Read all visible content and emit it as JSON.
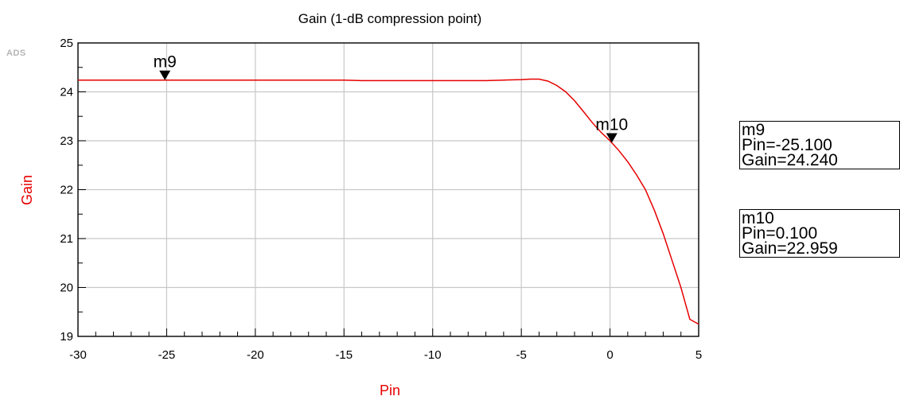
{
  "logo": "ADS",
  "chart_data": {
    "type": "line",
    "title": "Gain (1-dB compression point)",
    "xlabel": "Pin",
    "ylabel": "Gain",
    "xlim": [
      -30,
      5
    ],
    "ylim": [
      19,
      25
    ],
    "xticks": [
      "-30",
      "-25",
      "-20",
      "-15",
      "-10",
      "-5",
      "0",
      "5"
    ],
    "yticks": [
      "19",
      "20",
      "21",
      "22",
      "23",
      "24",
      "25"
    ],
    "grid": true,
    "series_color": "#e60000",
    "series": [
      {
        "values": [
          [
            -30,
            24.24
          ],
          [
            -25,
            24.24
          ],
          [
            -20,
            24.24
          ],
          [
            -15,
            24.24
          ],
          [
            -14,
            24.23
          ],
          [
            -12,
            24.23
          ],
          [
            -10,
            24.23
          ],
          [
            -8,
            24.23
          ],
          [
            -7,
            24.23
          ],
          [
            -6,
            24.24
          ],
          [
            -5,
            24.25
          ],
          [
            -4.5,
            24.26
          ],
          [
            -4,
            24.26
          ],
          [
            -3.5,
            24.22
          ],
          [
            -3,
            24.13
          ],
          [
            -2.5,
            24.0
          ],
          [
            -2,
            23.82
          ],
          [
            -1.5,
            23.6
          ],
          [
            -1,
            23.37
          ],
          [
            -0.5,
            23.17
          ],
          [
            0,
            23.0
          ],
          [
            0.1,
            22.959
          ],
          [
            0.5,
            22.8
          ],
          [
            1,
            22.57
          ],
          [
            1.5,
            22.3
          ],
          [
            2,
            22.0
          ],
          [
            2.5,
            21.58
          ],
          [
            3,
            21.1
          ],
          [
            3.5,
            20.55
          ],
          [
            4,
            20.0
          ],
          [
            4.5,
            19.35
          ],
          [
            5,
            19.25
          ]
        ]
      }
    ],
    "markers": [
      {
        "name": "m9",
        "x": -25.1,
        "y": 24.24
      },
      {
        "name": "m10",
        "x": 0.1,
        "y": 22.959
      }
    ]
  },
  "marker_readouts": [
    {
      "name": "m9",
      "pin": "Pin=-25.100",
      "gain": "Gain=24.240"
    },
    {
      "name": "m10",
      "pin": "Pin=0.100",
      "gain": "Gain=22.959"
    }
  ]
}
